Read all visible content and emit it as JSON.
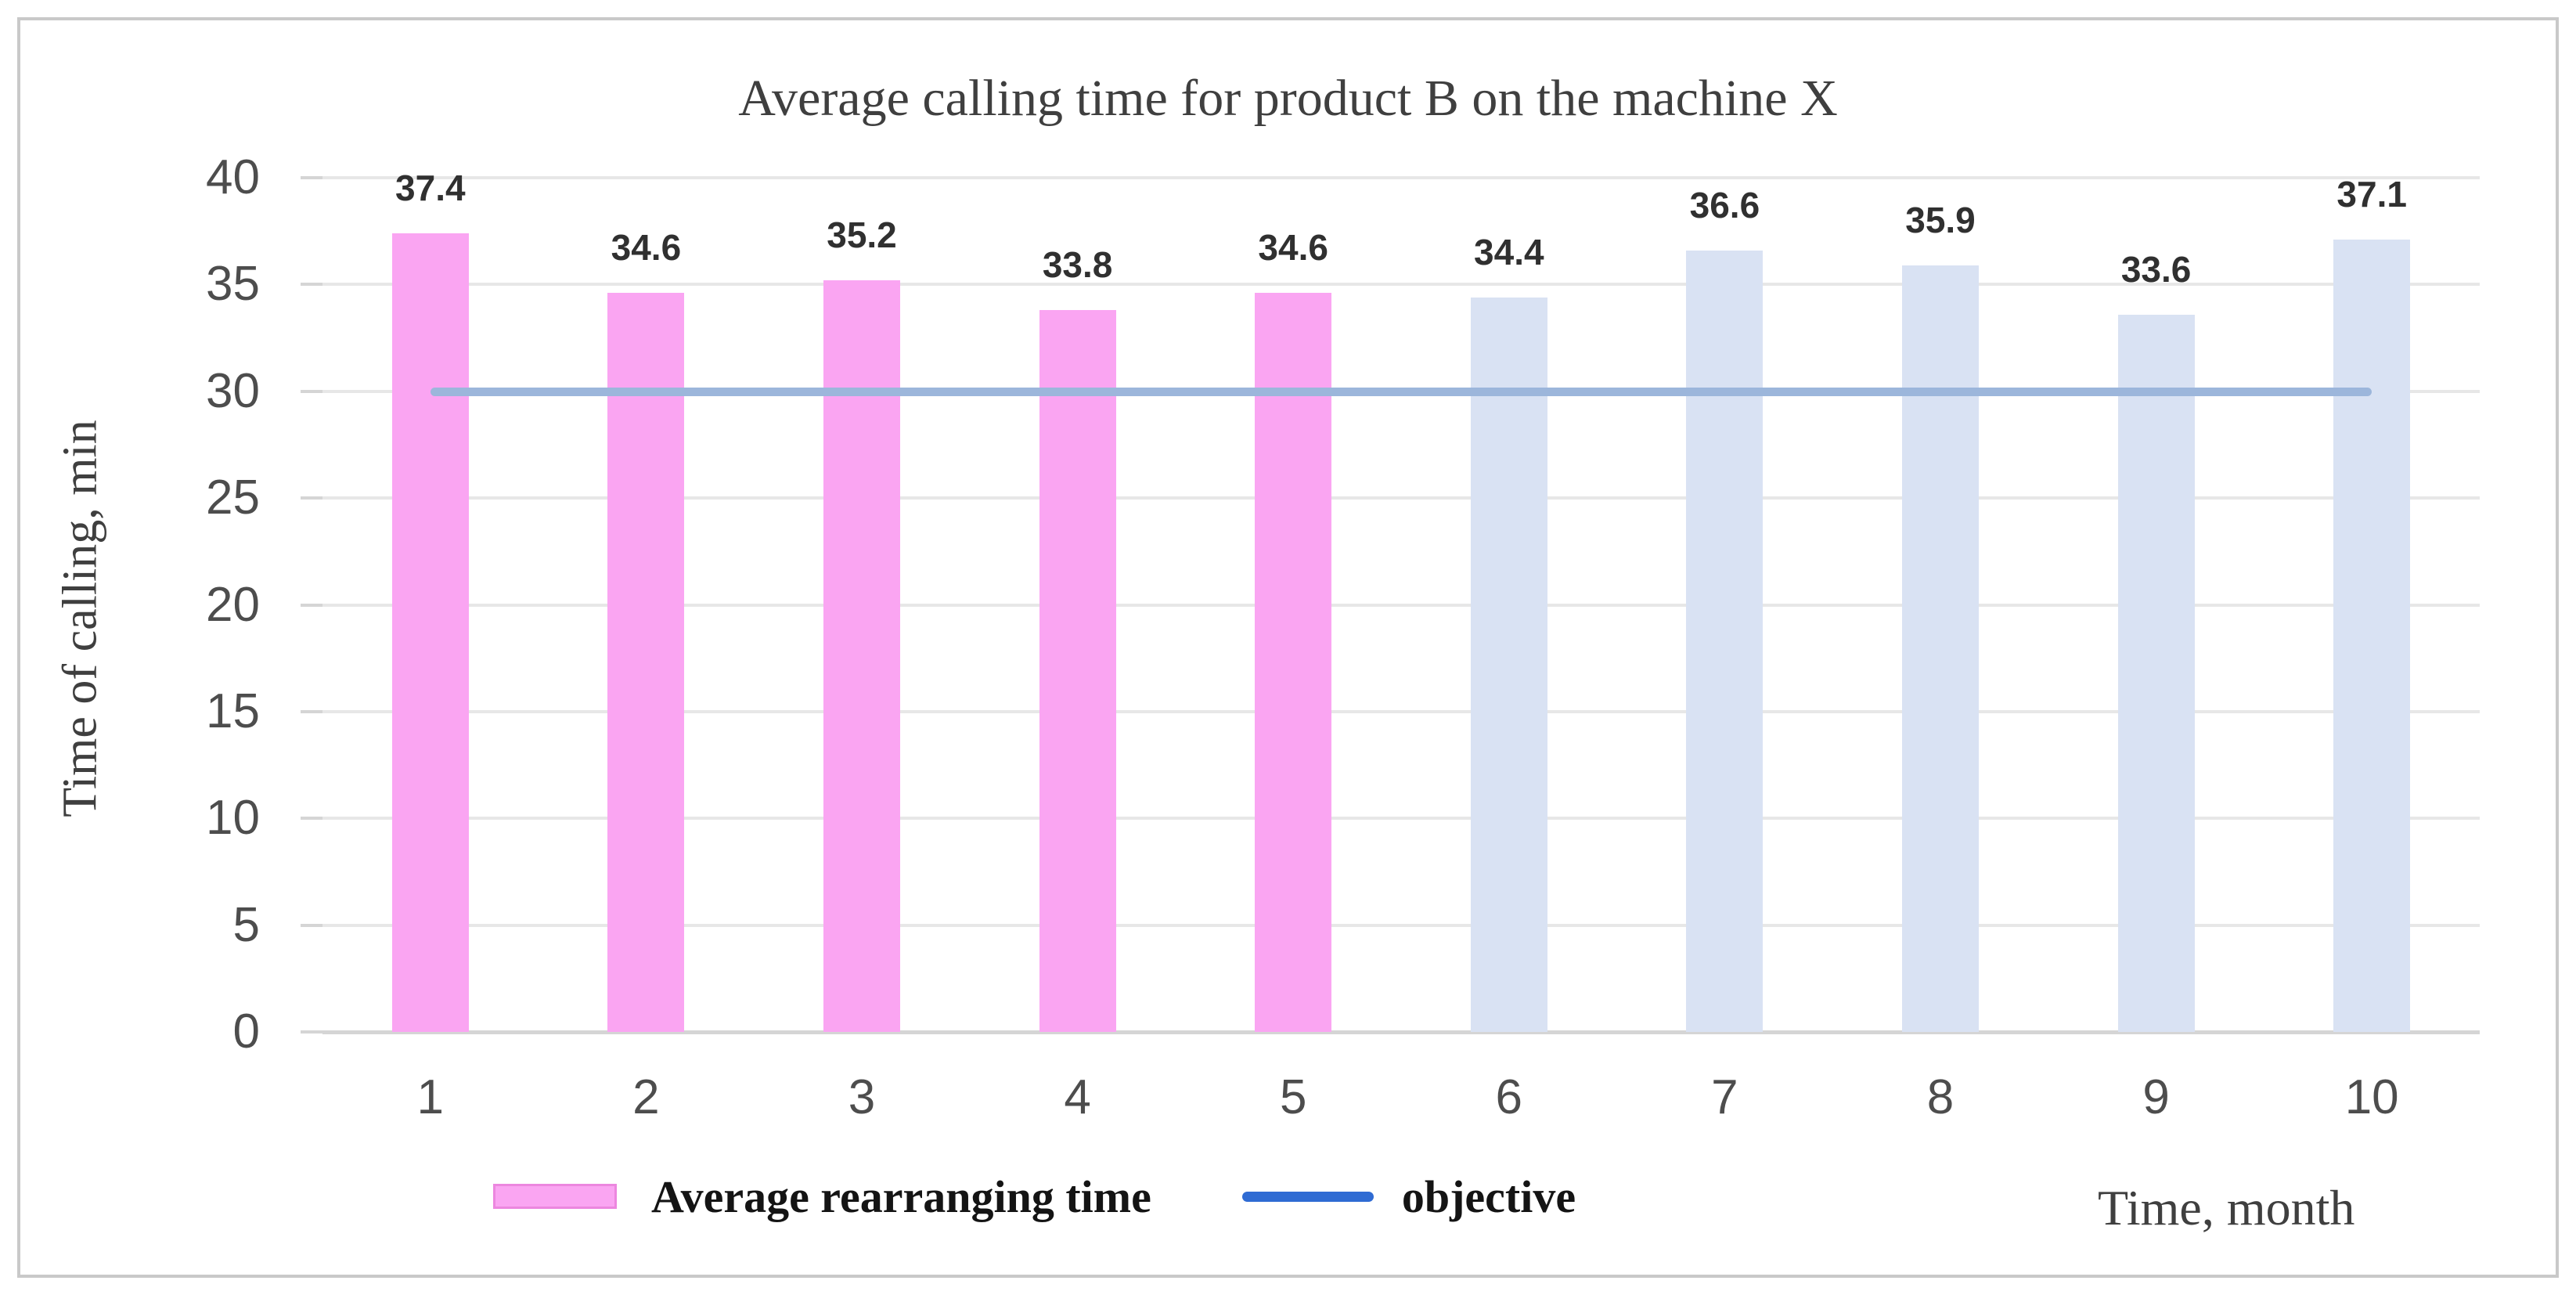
{
  "chart_data": {
    "type": "bar",
    "title": "Average calling time for product B on the machine X",
    "xlabel": "Time, month",
    "ylabel": "Time of calling, min",
    "categories": [
      "1",
      "2",
      "3",
      "4",
      "5",
      "6",
      "7",
      "8",
      "9",
      "10"
    ],
    "series": [
      {
        "name": "Average rearranging time",
        "type": "bar",
        "values": [
          37.4,
          34.6,
          35.2,
          33.8,
          34.6,
          34.4,
          36.6,
          35.9,
          33.6,
          37.1
        ]
      },
      {
        "name": "objective",
        "type": "line",
        "value": 30
      }
    ],
    "data_labels": [
      "37.4",
      "34.6",
      "35.2",
      "33.8",
      "34.6",
      "34.4",
      "36.6",
      "35.9",
      "33.6",
      "37.1"
    ],
    "ylim": [
      0,
      40
    ],
    "yticks": [
      "0",
      "5",
      "10",
      "15",
      "20",
      "25",
      "30",
      "35",
      "40"
    ],
    "grid": true,
    "legend_position": "bottom",
    "bar_split": {
      "pink_count": 5
    },
    "colors": {
      "pink_bar": "#FAA5F2",
      "pink_bar_border": "#EC87DF",
      "blue_bar": "#D9E2F3",
      "objective_line": "#9CB6DB",
      "legend_objective_line": "#2F6BD3",
      "gridline": "#E7E7E7",
      "axis_line": "#D5D5D5",
      "text": "#404040"
    }
  }
}
